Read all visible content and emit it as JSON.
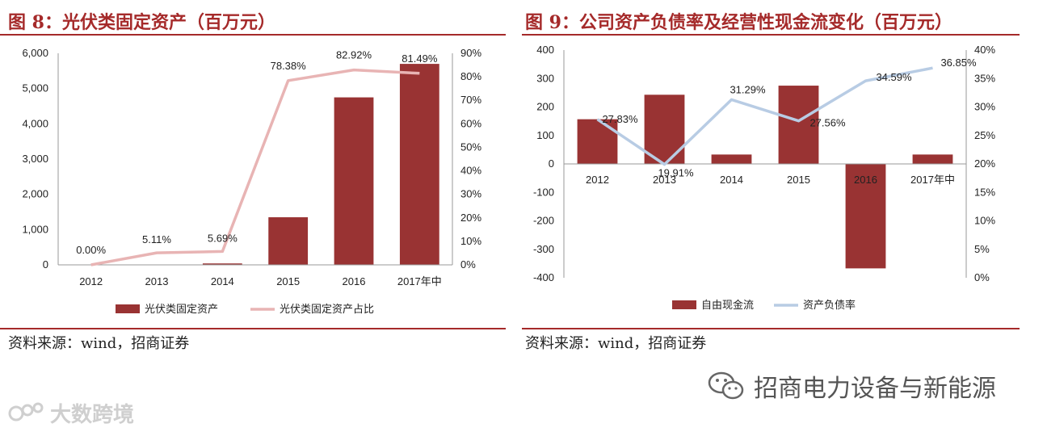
{
  "figures": {
    "left": {
      "title": "图 8：光伏类固定资产（百万元）",
      "source": "资料来源：wind，招商证券"
    },
    "right": {
      "title": "图 9：公司资产负债率及经营性现金流变化（百万元）",
      "source": "资料来源：wind，招商证券"
    }
  },
  "chart_data": [
    {
      "type": "bar",
      "categories": [
        "2012",
        "2013",
        "2014",
        "2015",
        "2016",
        "2017年中"
      ],
      "series": [
        {
          "name": "光伏类固定资产",
          "type": "bar",
          "axis": "left",
          "values": [
            0,
            0,
            40,
            1350,
            4750,
            5700
          ],
          "color": "#993333"
        },
        {
          "name": "光伏类固定资产占比",
          "type": "line",
          "axis": "right",
          "values": [
            0.0,
            5.11,
            5.69,
            78.38,
            82.92,
            81.49
          ],
          "labels": [
            "0.00%",
            "5.11%",
            "5.69%",
            "78.38%",
            "82.92%",
            "81.49%"
          ],
          "color": "#e8b4b4"
        }
      ],
      "y_left": {
        "min": 0,
        "max": 6000,
        "ticks": [
          "0",
          "1,000",
          "2,000",
          "3,000",
          "4,000",
          "5,000",
          "6,000"
        ]
      },
      "y_right": {
        "min": 0,
        "max": 90,
        "ticks": [
          "0%",
          "10%",
          "20%",
          "30%",
          "40%",
          "50%",
          "60%",
          "70%",
          "80%",
          "90%"
        ]
      },
      "legend": "bottom",
      "grid": false
    },
    {
      "type": "bar",
      "categories": [
        "2012",
        "2013",
        "2014",
        "2015",
        "2016",
        "2017年中"
      ],
      "series": [
        {
          "name": "自由现金流",
          "type": "bar",
          "axis": "left",
          "values": [
            157,
            243,
            33,
            275,
            -367,
            33
          ],
          "color": "#993333"
        },
        {
          "name": "资产负债率",
          "type": "line",
          "axis": "right",
          "values": [
            27.83,
            19.91,
            31.29,
            27.56,
            34.59,
            36.85
          ],
          "labels": [
            "27.83%",
            "19.91%",
            "31.29%",
            "27.56%",
            "34.59%",
            "36.85%"
          ],
          "color": "#b8cce4"
        }
      ],
      "y_left": {
        "min": -400,
        "max": 400,
        "ticks": [
          "-400",
          "-300",
          "-200",
          "-100",
          "0",
          "100",
          "200",
          "300",
          "400"
        ]
      },
      "y_right": {
        "min": 0,
        "max": 40,
        "ticks": [
          "0%",
          "5%",
          "10%",
          "15%",
          "20%",
          "25%",
          "30%",
          "35%",
          "40%"
        ]
      },
      "legend": "bottom",
      "grid": false
    }
  ],
  "watermarks": {
    "left": "大数跨境",
    "right": "招商电力设备与新能源",
    "right_icon": "wechat-icon"
  }
}
